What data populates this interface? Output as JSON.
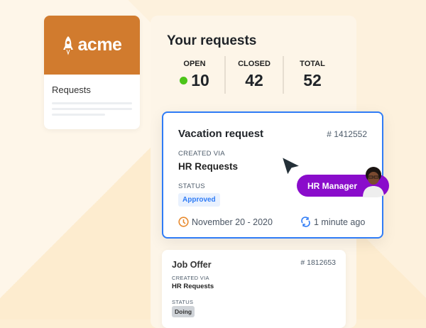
{
  "sidebar": {
    "logo": "acme",
    "title": "Requests"
  },
  "panel": {
    "title": "Your requests",
    "stats": [
      {
        "label": "OPEN",
        "value": "10"
      },
      {
        "label": "CLOSED",
        "value": "42"
      },
      {
        "label": "TOTAL",
        "value": "52"
      }
    ],
    "open_dot_color": "#4cc418"
  },
  "requests": [
    {
      "title": "Vacation request",
      "id": "# 1412552",
      "created_label": "CREATED VIA",
      "created_value": "HR Requests",
      "status_label": "STATUS",
      "status": "Approved",
      "date": "November 20 - 2020",
      "updated": "1 minute ago"
    },
    {
      "title": "Job Offer",
      "id": "# 1812653",
      "created_label": "CREATED VIA",
      "created_value": "HR Requests",
      "status_label": "STATUS",
      "status": "Doing"
    }
  ],
  "assignee": {
    "role": "HR Manager"
  },
  "colors": {
    "brand": "#d17b2e",
    "accent": "#2f7cf6",
    "role": "#8a0ccb"
  }
}
